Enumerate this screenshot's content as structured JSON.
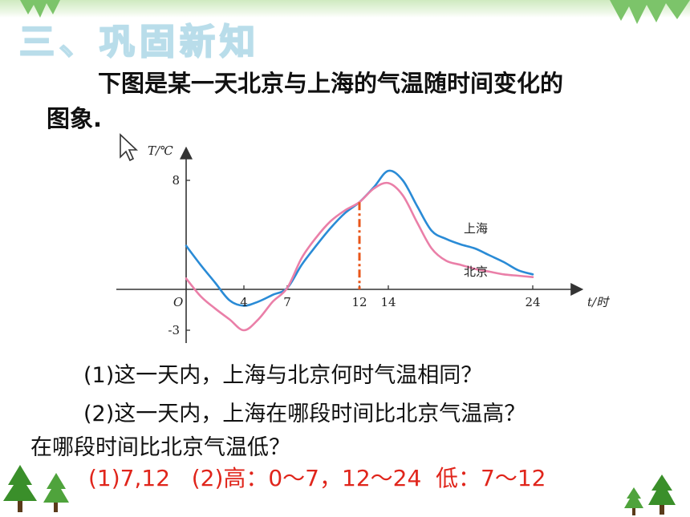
{
  "section_title": "三、巩固新知",
  "intro_text_line1": "下图是某一天北京与上海的气温随时间变化的",
  "intro_text_line2": "图象.",
  "chart_data": {
    "type": "line",
    "ylabel": "T/℃",
    "xlabel": "t/时",
    "origin_label": "O",
    "x_ticks": [
      4,
      7,
      12,
      14,
      24
    ],
    "x_tick_labels": [
      "4",
      "7",
      "12",
      "14",
      "24"
    ],
    "y_ticks": [
      8,
      -3
    ],
    "y_tick_labels": [
      "8",
      "-3"
    ],
    "xlim": [
      0,
      24
    ],
    "ylim": [
      -3,
      8
    ],
    "grid": false,
    "series": [
      {
        "name": "上海",
        "color": "#2a8bd6",
        "x": [
          0,
          1,
          2,
          3,
          4,
          5,
          6,
          7,
          8,
          9,
          10,
          11,
          12,
          13,
          14,
          15,
          16,
          17,
          18,
          19,
          20,
          21,
          22,
          23,
          24
        ],
        "y": [
          3.2,
          1.8,
          0.5,
          -0.8,
          -1.2,
          -0.9,
          -0.4,
          0.1,
          1.8,
          3.2,
          4.5,
          5.6,
          6.4,
          7.5,
          8.7,
          8.0,
          6.1,
          4.3,
          3.7,
          3.3,
          3.0,
          2.5,
          2.0,
          1.4,
          1.1
        ]
      },
      {
        "name": "北京",
        "color": "#ea7fa8",
        "x": [
          0,
          1,
          2,
          3,
          4,
          5,
          6,
          7,
          8,
          9,
          10,
          11,
          12,
          13,
          14,
          15,
          16,
          17,
          18,
          19,
          20,
          21,
          22,
          23,
          24
        ],
        "y": [
          0.8,
          -0.5,
          -1.4,
          -2.2,
          -3.0,
          -2.2,
          -0.9,
          0.1,
          2.3,
          3.8,
          5.0,
          5.8,
          6.4,
          7.4,
          7.8,
          6.9,
          4.9,
          3.0,
          2.1,
          1.8,
          1.5,
          1.3,
          1.1,
          1.0,
          0.9
        ]
      }
    ],
    "marker_line_x": 12,
    "marker_line_color": "#e8561a"
  },
  "questions": {
    "q1": "(1)这一天内，上海与北京何时气温相同？",
    "q2": "(2)这一天内，上海在哪段时间比北京气温高？",
    "q2b": "在哪段时间比北京气温低？"
  },
  "answer": "(1)7,12   (2)高：0～7，12～24  低：7～12",
  "colors": {
    "accent_green": "#3a8f2a",
    "title_blue": "#b9ddea",
    "answer_red": "#e0251b"
  }
}
